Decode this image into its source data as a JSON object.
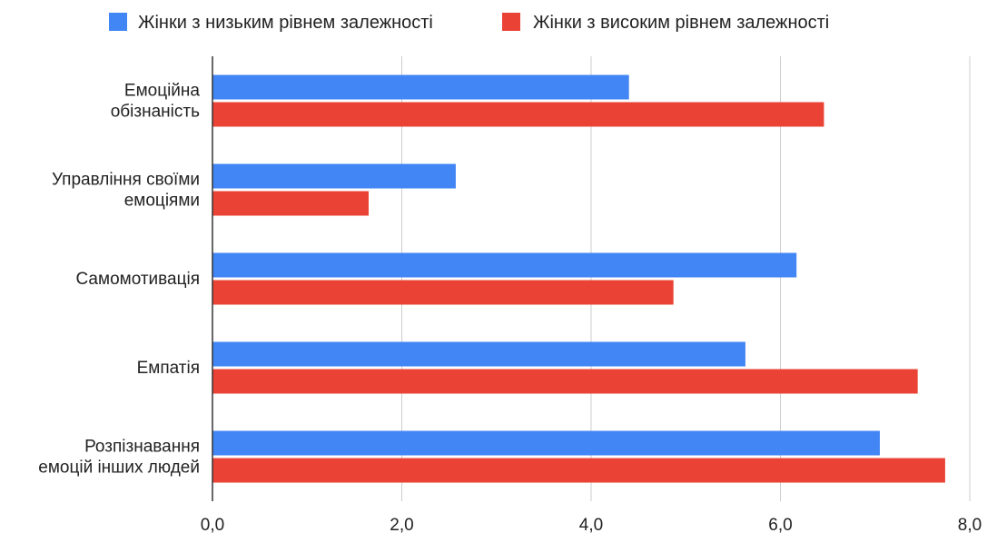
{
  "chart_data": {
    "type": "bar",
    "orientation": "horizontal",
    "categories": [
      [
        "Емоційна",
        "обізнаність"
      ],
      [
        "Управління своїми",
        "емоціями"
      ],
      [
        "Самомотивація"
      ],
      [
        "Емпатія"
      ],
      [
        "Розпізнавання",
        "емоцій інших людей"
      ]
    ],
    "series": [
      {
        "name": "Жінки з низьким рівнем залежності",
        "color": "#4285f4",
        "values": [
          4.4,
          2.57,
          6.17,
          5.63,
          7.05
        ]
      },
      {
        "name": "Жінки з високим рівнем залежності",
        "color": "#ea4335",
        "values": [
          6.46,
          1.65,
          4.87,
          7.45,
          7.74
        ]
      }
    ],
    "xlim": [
      0,
      8
    ],
    "ticks": [
      "0,0",
      "2,0",
      "4,0",
      "6,0",
      "8,0"
    ],
    "tick_values": [
      0,
      2,
      4,
      6,
      8
    ],
    "grid": true,
    "legend_position": "top",
    "title": "",
    "xlabel": "",
    "ylabel": ""
  }
}
